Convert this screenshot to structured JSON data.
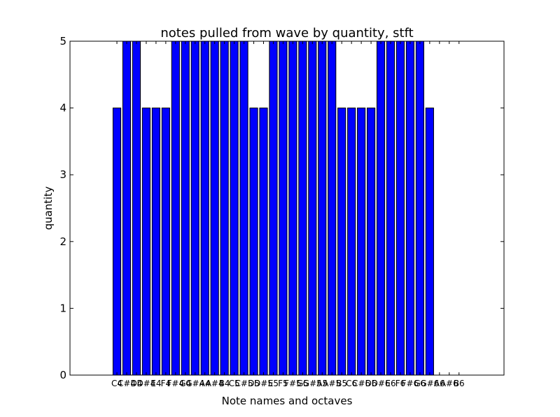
{
  "chart_data": {
    "type": "bar",
    "title": "notes pulled from wave by quantity, stft",
    "xlabel": "Note names and octaves",
    "ylabel": "quantity",
    "ylim": [
      0,
      5
    ],
    "yticks": [
      "0",
      "1",
      "2",
      "3",
      "4",
      "5"
    ],
    "categories": [
      "C4",
      "C#4",
      "D4",
      "D#4",
      "E4",
      "F4",
      "F#4",
      "G4",
      "G#4",
      "A4",
      "A#4",
      "B4",
      "C5",
      "C#5",
      "D5",
      "D#5",
      "E5",
      "F5",
      "F#5",
      "G5",
      "G#5",
      "A5",
      "A#5",
      "B5",
      "C6",
      "C#6",
      "D6",
      "D#6",
      "E6",
      "F6",
      "F#6",
      "G6",
      "G#6",
      "A6",
      "A#6",
      "B6"
    ],
    "values": [
      4,
      5,
      5,
      4,
      4,
      4,
      5,
      5,
      5,
      5,
      5,
      5,
      5,
      5,
      4,
      4,
      5,
      5,
      5,
      5,
      5,
      5,
      5,
      4,
      4,
      4,
      4,
      5,
      5,
      5,
      5,
      5,
      4,
      0,
      0,
      0
    ],
    "colors": {
      "bar": "#0000ff",
      "edge": "#000000"
    },
    "grid": false,
    "legend": "none"
  }
}
